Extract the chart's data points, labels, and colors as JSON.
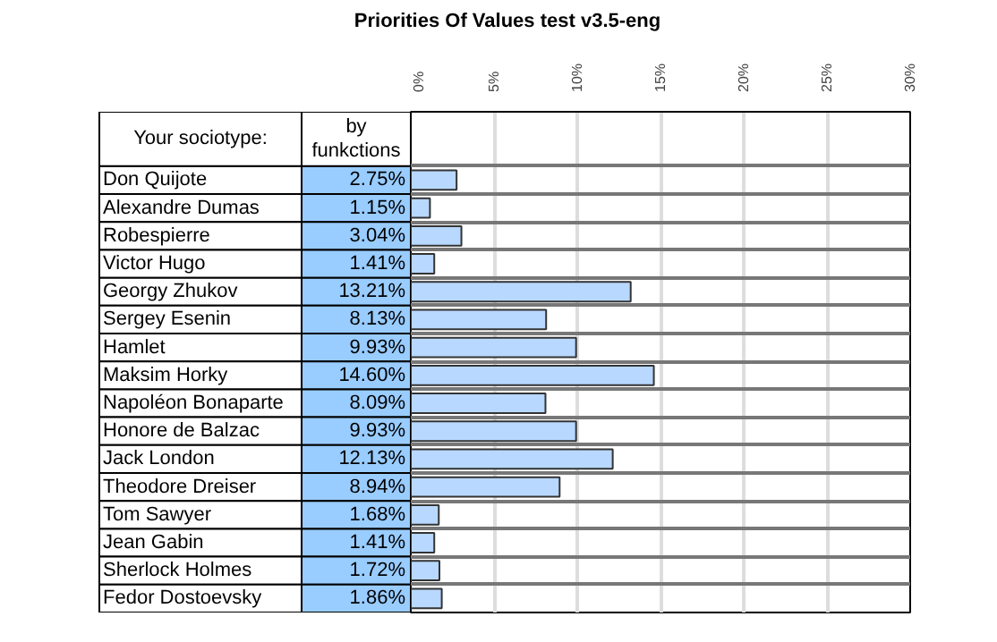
{
  "chart_data": {
    "type": "bar",
    "orientation": "horizontal",
    "title": "Priorities Of Values test v3.5-eng",
    "ylabel": "Your sociotype:",
    "annotations": [
      "by funkctions"
    ],
    "categories": [
      "Don Quijote",
      "Alexandre Dumas",
      "Robespierre",
      "Victor Hugo",
      "Georgy Zhukov",
      "Sergey  Esenin",
      "Hamlet",
      "Maksim Horky",
      "Napoléon Bonaparte",
      "Honore de Balzac",
      "Jack London",
      "Theodore Dreiser",
      "Tom Sawyer",
      "Jean Gabin",
      "Sherlock Holmes",
      "Fedor Dostoevsky"
    ],
    "values": [
      2.75,
      1.15,
      3.04,
      1.41,
      13.21,
      8.13,
      9.93,
      14.6,
      8.09,
      9.93,
      12.13,
      8.94,
      1.68,
      1.41,
      1.72,
      1.86
    ],
    "value_labels": [
      "2.75%",
      "1.15%",
      "3.04%",
      "1.41%",
      "13.21%",
      "8.13%",
      "9.93%",
      "14.60%",
      "8.09%",
      "9.93%",
      "12.13%",
      "8.94%",
      "1.68%",
      "1.41%",
      "1.72%",
      "1.86%"
    ],
    "color": "#b8d8ff",
    "xlim": [
      0,
      30
    ],
    "xticks": [
      {
        "value": 0,
        "label": "0%"
      },
      {
        "value": 5,
        "label": "5%"
      },
      {
        "value": 10,
        "label": "10%"
      },
      {
        "value": 15,
        "label": "15%"
      },
      {
        "value": 20,
        "label": "20%"
      },
      {
        "value": 25,
        "label": "25%"
      },
      {
        "value": 30,
        "label": "30%"
      }
    ],
    "grid": true
  }
}
